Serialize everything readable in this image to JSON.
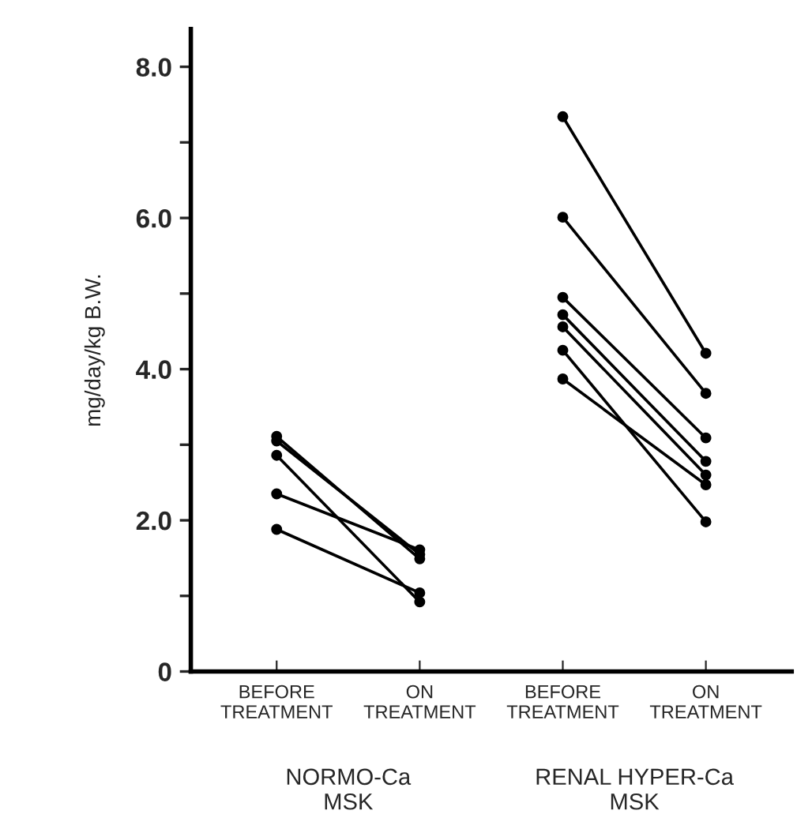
{
  "chart_data": {
    "type": "line",
    "ylabel": "mg/day/kg B.W.",
    "categories": [
      "BEFORE\nTREATMENT",
      "ON\nTREATMENT",
      "BEFORE\nTREATMENT",
      "ON\nTREATMENT"
    ],
    "series": [
      {
        "color": "#000000",
        "values": [
          3.11,
          1.49,
          null,
          null
        ]
      },
      {
        "color": "#000000",
        "values": [
          3.05,
          1.55,
          null,
          null
        ]
      },
      {
        "color": "#000000",
        "values": [
          2.86,
          0.92,
          null,
          null
        ]
      },
      {
        "color": "#000000",
        "values": [
          2.35,
          1.61,
          null,
          null
        ]
      },
      {
        "color": "#000000",
        "values": [
          1.88,
          1.04,
          null,
          null
        ]
      },
      {
        "color": "#000000",
        "values": [
          null,
          null,
          7.34,
          4.21
        ]
      },
      {
        "color": "#000000",
        "values": [
          null,
          null,
          6.01,
          3.68
        ]
      },
      {
        "color": "#000000",
        "values": [
          null,
          null,
          4.95,
          3.09
        ]
      },
      {
        "color": "#000000",
        "values": [
          null,
          null,
          4.72,
          2.78
        ]
      },
      {
        "color": "#000000",
        "values": [
          null,
          null,
          4.56,
          2.6
        ]
      },
      {
        "color": "#000000",
        "values": [
          null,
          null,
          3.87,
          2.47
        ]
      },
      {
        "color": "#000000",
        "values": [
          null,
          null,
          4.25,
          1.98
        ]
      }
    ],
    "ylim": [
      0,
      8.5
    ],
    "yticks": [
      0,
      {
        "value": 1,
        "label": null
      },
      {
        "value": 2,
        "label": "2.0"
      },
      {
        "value": 3,
        "label": null
      },
      {
        "value": 4,
        "label": "4.0"
      },
      {
        "value": 5,
        "label": null
      },
      {
        "value": 6,
        "label": "6.0"
      },
      {
        "value": 7,
        "label": null
      },
      {
        "value": 8,
        "label": "8.0"
      }
    ],
    "annotations": [
      "NORMO-Ca\nMSK",
      "RENAL HYPER-Ca\nMSK"
    ],
    "grid": false,
    "legend": false,
    "marker": "circle",
    "line_style": "solid"
  }
}
